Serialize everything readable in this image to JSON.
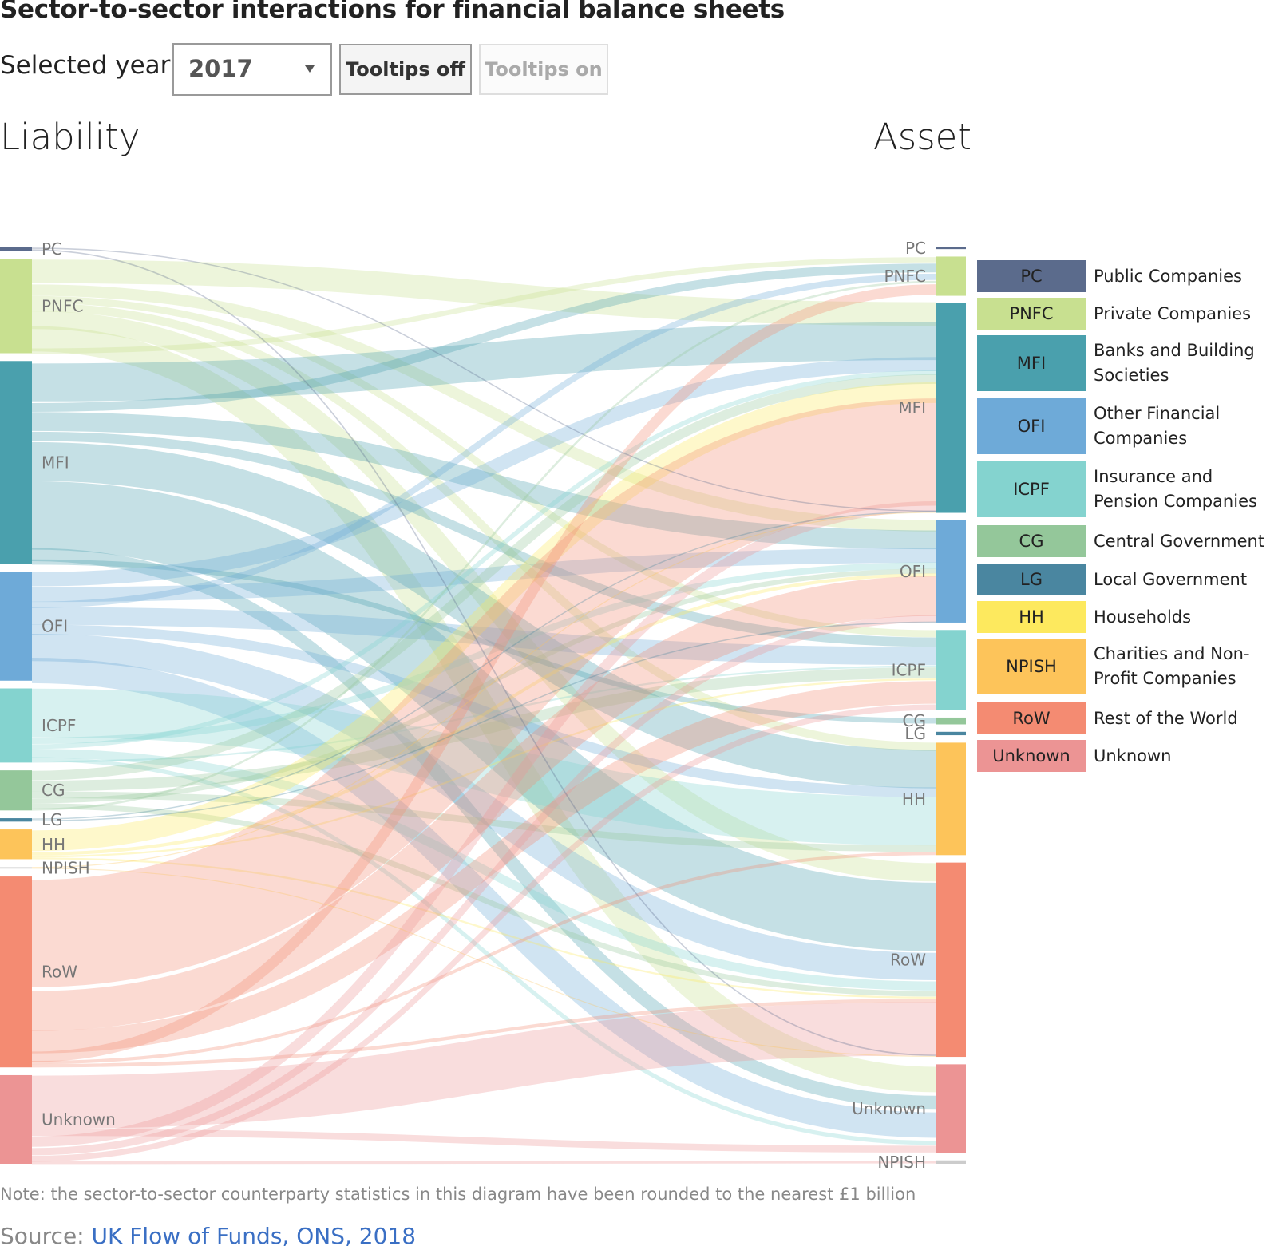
{
  "title": "Sector-to-sector interactions for financial balance sheets",
  "controls": {
    "year_label": "Selected year:",
    "year_value": "2017",
    "tooltips_off": "Tooltips off",
    "tooltips_on": "Tooltips on"
  },
  "headers": {
    "left": "Liability",
    "right": "Asset"
  },
  "left_nodes": [
    {
      "code": "PC",
      "h": 0.004
    },
    {
      "code": "PNFC",
      "h": 0.111
    },
    {
      "code": "MFI",
      "h": 0.238
    },
    {
      "code": "OFI",
      "h": 0.128
    },
    {
      "code": "ICPF",
      "h": 0.087
    },
    {
      "code": "CG",
      "h": 0.047
    },
    {
      "code": "LG",
      "h": 0.004
    },
    {
      "code": "HH",
      "h": 0.035
    },
    {
      "code": "NPISH",
      "h": 0.002
    },
    {
      "code": "RoW",
      "h": 0.224
    },
    {
      "code": "Unknown",
      "h": 0.104
    }
  ],
  "right_nodes": [
    {
      "code": "PC",
      "h": 0.002
    },
    {
      "code": "PNFC",
      "h": 0.046
    },
    {
      "code": "MFI",
      "h": 0.246
    },
    {
      "code": "OFI",
      "h": 0.12
    },
    {
      "code": "ICPF",
      "h": 0.094
    },
    {
      "code": "CG",
      "h": 0.008
    },
    {
      "code": "LG",
      "h": 0.004
    },
    {
      "code": "HH",
      "h": 0.132
    },
    {
      "code": "RoW",
      "h": 0.228
    },
    {
      "code": "Unknown",
      "h": 0.104
    },
    {
      "code": "NPISH",
      "h": 0.004
    }
  ],
  "flows": [
    [
      "PNFC",
      "MFI",
      30
    ],
    [
      "PNFC",
      "OFI",
      14
    ],
    [
      "PNFC",
      "ICPF",
      8
    ],
    [
      "PNFC",
      "HH",
      10
    ],
    [
      "PNFC",
      "RoW",
      20
    ],
    [
      "PNFC",
      "Unknown",
      24
    ],
    [
      "PNFC",
      "PNFC",
      5
    ],
    [
      "MFI",
      "MFI",
      46
    ],
    [
      "MFI",
      "PNFC",
      8
    ],
    [
      "MFI",
      "OFI",
      22
    ],
    [
      "MFI",
      "ICPF",
      10
    ],
    [
      "MFI",
      "HH",
      44
    ],
    [
      "MFI",
      "RoW",
      72
    ],
    [
      "MFI",
      "Unknown",
      12
    ],
    [
      "MFI",
      "CG",
      4
    ],
    [
      "OFI",
      "MFI",
      18
    ],
    [
      "OFI",
      "OFI",
      18
    ],
    [
      "OFI",
      "PNFC",
      6
    ],
    [
      "OFI",
      "ICPF",
      20
    ],
    [
      "OFI",
      "HH",
      12
    ],
    [
      "OFI",
      "RoW",
      30
    ],
    [
      "OFI",
      "Unknown",
      24
    ],
    [
      "ICPF",
      "HH",
      58
    ],
    [
      "ICPF",
      "OFI",
      8
    ],
    [
      "ICPF",
      "MFI",
      6
    ],
    [
      "ICPF",
      "RoW",
      10
    ],
    [
      "ICPF",
      "Unknown",
      4
    ],
    [
      "ICPF",
      "ICPF",
      2
    ],
    [
      "CG",
      "MFI",
      12
    ],
    [
      "CG",
      "ICPF",
      12
    ],
    [
      "CG",
      "HH",
      8
    ],
    [
      "CG",
      "OFI",
      6
    ],
    [
      "CG",
      "RoW",
      6
    ],
    [
      "CG",
      "PNFC",
      2
    ],
    [
      "HH",
      "MFI",
      26
    ],
    [
      "HH",
      "OFI",
      4
    ],
    [
      "HH",
      "ICPF",
      2
    ],
    [
      "HH",
      "RoW",
      2
    ],
    [
      "RoW",
      "MFI",
      140
    ],
    [
      "RoW",
      "OFI",
      50
    ],
    [
      "RoW",
      "ICPF",
      26
    ],
    [
      "RoW",
      "PNFC",
      10
    ],
    [
      "RoW",
      "HH",
      4
    ],
    [
      "RoW",
      "RoW",
      4
    ],
    [
      "Unknown",
      "RoW",
      54
    ],
    [
      "Unknown",
      "Unknown",
      6
    ],
    [
      "Unknown",
      "MFI",
      12
    ],
    [
      "Unknown",
      "OFI",
      8
    ],
    [
      "Unknown",
      "ICPF",
      6
    ],
    [
      "Unknown",
      "NPISH",
      2
    ],
    [
      "PC",
      "MFI",
      1
    ],
    [
      "PC",
      "RoW",
      1
    ],
    [
      "LG",
      "MFI",
      1
    ],
    [
      "LG",
      "OFI",
      1
    ],
    [
      "NPISH",
      "MFI",
      1
    ],
    [
      "NPISH",
      "RoW",
      1
    ]
  ],
  "colors": {
    "PC": "#5b6b8c",
    "PNFC": "#c8e090",
    "MFI": "#4aa0ad",
    "OFI": "#6eaad8",
    "ICPF": "#84d3cf",
    "CG": "#94c79a",
    "LG": "#4a86a0",
    "HH": "#fde95e",
    "HH_node": "#fdc45a",
    "NPISH": "#fdc45a",
    "RoW": "#f48b72",
    "Unknown": "#ec9494",
    "NPISH_node": "#cccccc"
  },
  "legend": [
    {
      "code": "PC",
      "name": "Public Companies",
      "color": "#5b6b8c"
    },
    {
      "code": "PNFC",
      "name": "Private Companies",
      "color": "#c8e090"
    },
    {
      "code": "MFI",
      "name": "Banks and Building Societies",
      "color": "#4aa0ad"
    },
    {
      "code": "OFI",
      "name": "Other Financial Companies",
      "color": "#6eaad8"
    },
    {
      "code": "ICPF",
      "name": "Insurance and Pension Companies",
      "color": "#84d3cf"
    },
    {
      "code": "CG",
      "name": "Central Government",
      "color": "#94c79a"
    },
    {
      "code": "LG",
      "name": "Local Government",
      "color": "#4a86a0"
    },
    {
      "code": "HH",
      "name": "Households",
      "color": "#fde95e"
    },
    {
      "code": "NPISH",
      "name": "Charities and Non-Profit Companies",
      "color": "#fdc45a"
    },
    {
      "code": "RoW",
      "name": "Rest of the World",
      "color": "#f48b72"
    },
    {
      "code": "Unknown",
      "name": "Unknown",
      "color": "#ec9494"
    }
  ],
  "note": "Note: the sector-to-sector counterparty statistics in this diagram have been rounded to the nearest £1 billion",
  "source": {
    "prefix": "Source: ",
    "link": "UK Flow of Funds, ONS, 2018"
  }
}
